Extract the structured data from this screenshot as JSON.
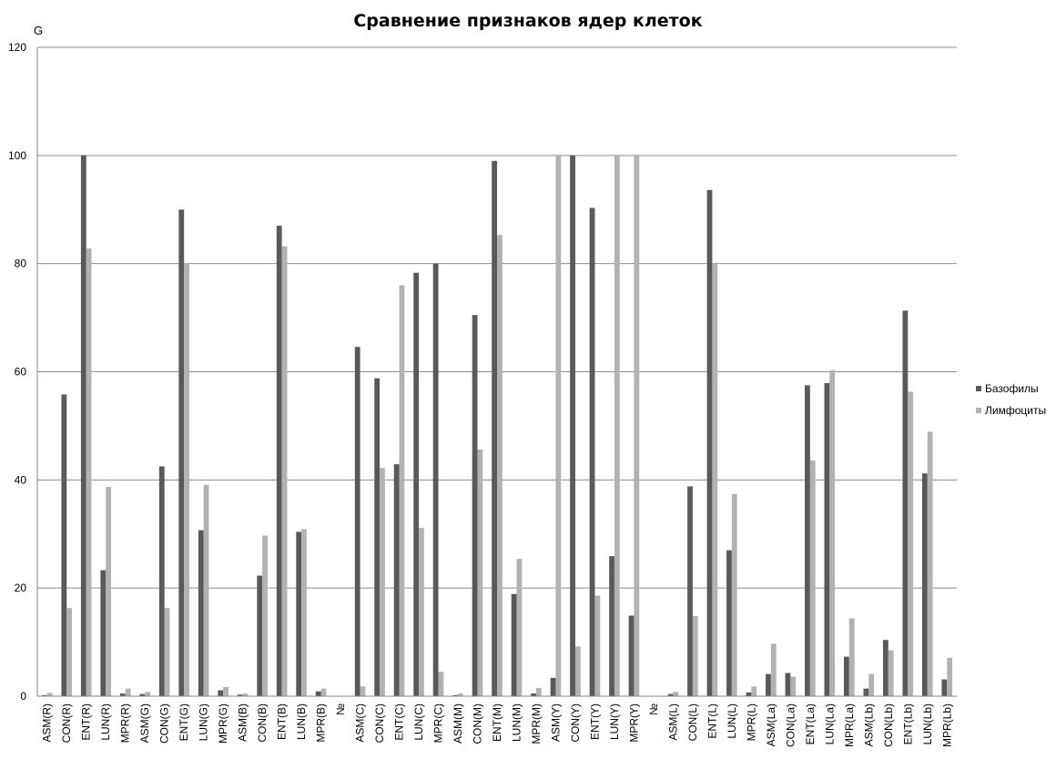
{
  "chart_data": {
    "type": "bar",
    "title": "Сравнение признаков ядер клеток",
    "ylabel": "G",
    "xlabel": "",
    "ylim": [
      0,
      120
    ],
    "yticks": [
      0,
      20,
      40,
      60,
      80,
      100,
      120
    ],
    "grid": true,
    "legend_position": "right",
    "categories": [
      "ASM(R)",
      "CON(R)",
      "ENT(R)",
      "LUN(R)",
      "MPR(R)",
      "ASM(G)",
      "CON(G)",
      "ENT(G)",
      "LUN(G)",
      "MPR(G)",
      "ASM(B)",
      "CON(B)",
      "ENT(B)",
      "LUN(B)",
      "MPR(B)",
      "№",
      "ASM(C)",
      "CON(C)",
      "ENT(C)",
      "LUN(C)",
      "MPR(C)",
      "ASM(M)",
      "CON(M)",
      "ENT(M)",
      "LUN(M)",
      "MPR(M)",
      "ASM(Y)",
      "CON(Y)",
      "ENT(Y)",
      "LUN(Y)",
      "MPR(Y)",
      "№",
      "ASM(L)",
      "CON(L)",
      "ENT(L)",
      "LUN(L)",
      "MPR(L)",
      "ASM(La)",
      "CON(La)",
      "ENT(La)",
      "LUN(La)",
      "MPR(La)",
      "ASM(Lb)",
      "CON(Lb)",
      "ENT(Lb)",
      "LUN(Lb)",
      "MPR(Lb)"
    ],
    "series": [
      {
        "name": "Базофилы",
        "color": "#595959",
        "values": [
          0.2,
          55.8,
          100,
          23.3,
          0.5,
          0.4,
          42.5,
          90,
          30.7,
          1.1,
          0.3,
          22.3,
          87,
          30.4,
          0.9,
          0,
          64.6,
          58.8,
          42.9,
          78.3,
          80,
          0.2,
          70.5,
          99,
          18.9,
          0.5,
          3.4,
          100,
          90.3,
          25.9,
          14.9,
          0,
          0.4,
          38.8,
          93.6,
          27,
          0.7,
          4.1,
          4.3,
          57.5,
          57.9,
          7.3,
          1.4,
          10.4,
          71.3,
          41.2,
          3.1
        ]
      },
      {
        "name": "Лимфоциты",
        "color": "#b2b2b2",
        "values": [
          0.6,
          16.3,
          82.8,
          38.7,
          1.4,
          0.8,
          16.3,
          80,
          39.1,
          1.7,
          0.5,
          29.7,
          83.2,
          30.9,
          1.4,
          0,
          1.8,
          42.2,
          76,
          31.1,
          4.5,
          0.5,
          45.6,
          85.3,
          25.4,
          1.5,
          100,
          9.2,
          18.6,
          100,
          100,
          0,
          0.8,
          14.8,
          80,
          37.4,
          1.8,
          9.7,
          3.6,
          43.6,
          60.3,
          14.4,
          4.1,
          8.5,
          56.3,
          48.9,
          7.1
        ]
      }
    ]
  }
}
